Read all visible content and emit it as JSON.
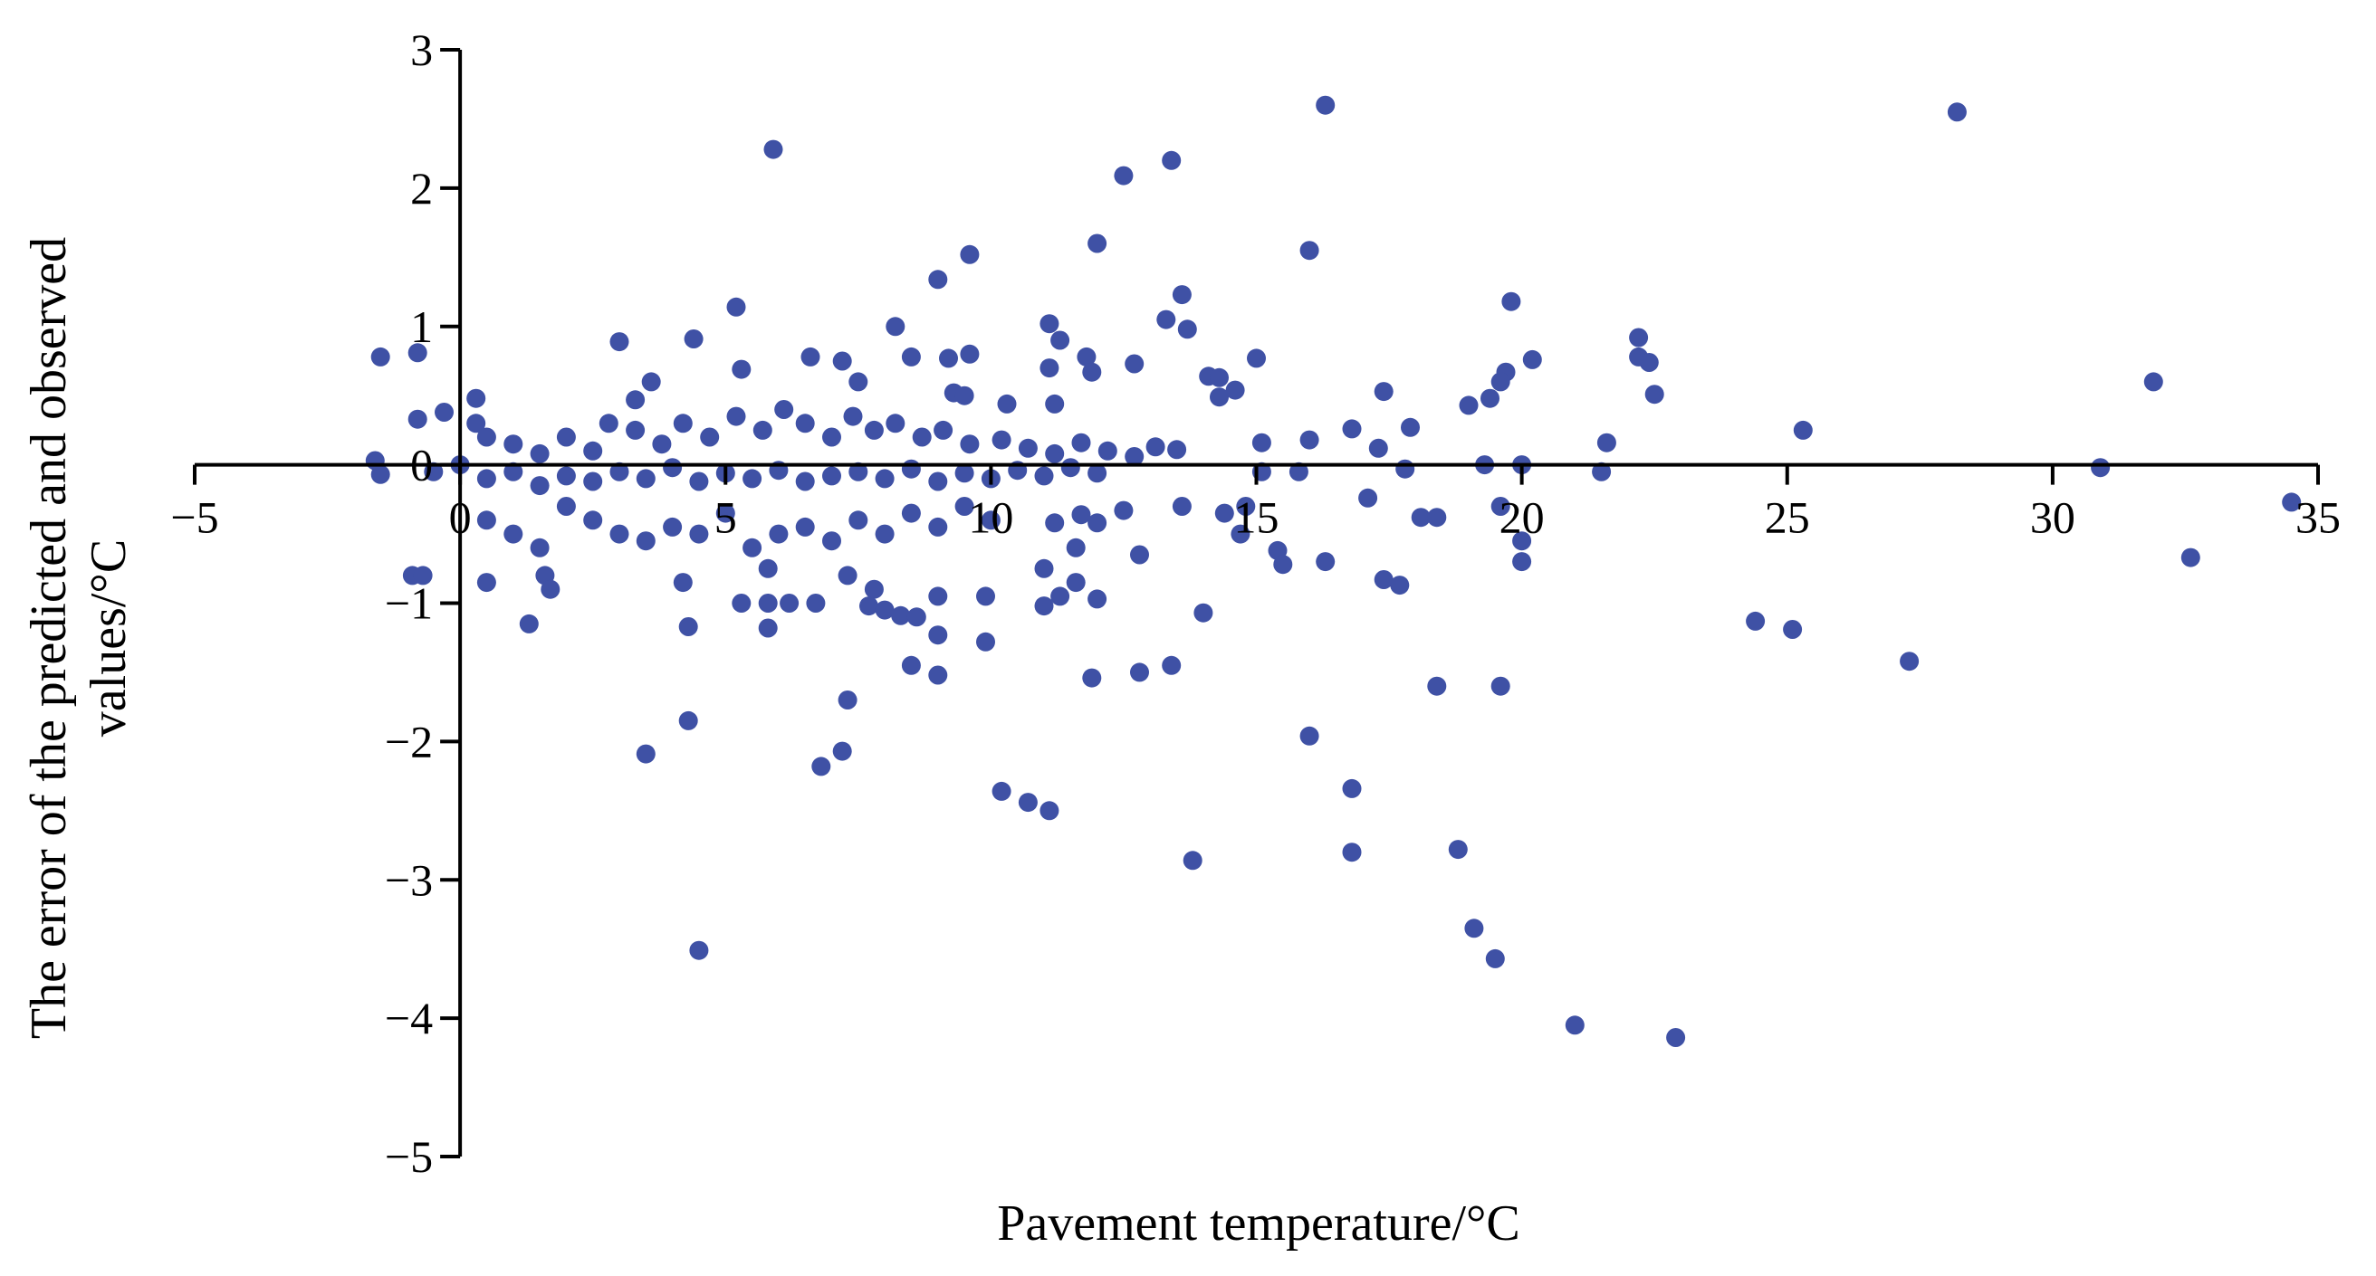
{
  "chart_data": {
    "type": "scatter",
    "title": "",
    "xlabel": "Pavement temperature/°C",
    "ylabel_lines": [
      "The error of the predicted and observed",
      "values/°C"
    ],
    "xlim": [
      -5,
      35
    ],
    "ylim": [
      -5,
      3
    ],
    "xticks": [
      -5,
      0,
      5,
      10,
      15,
      20,
      25,
      30,
      35
    ],
    "yticks": [
      -5,
      -4,
      -3,
      -2,
      -1,
      0,
      1,
      2,
      3
    ],
    "xtick_labels": [
      "−5",
      "0",
      "5",
      "10",
      "15",
      "20",
      "25",
      "30",
      "35"
    ],
    "ytick_labels": [
      "−5",
      "−4",
      "−3",
      "−2",
      "−1",
      "0",
      "1",
      "2",
      "3"
    ],
    "grid": false,
    "legend": "none",
    "marker_color": "#3f51a5",
    "series": [
      {
        "points": [
          [
            16.3,
            2.6
          ],
          [
            28.2,
            2.55
          ],
          [
            5.9,
            2.28
          ],
          [
            13.4,
            2.2
          ],
          [
            12.5,
            2.09
          ],
          [
            12.0,
            1.6
          ],
          [
            16.0,
            1.55
          ],
          [
            9.6,
            1.52
          ],
          [
            9.0,
            1.34
          ],
          [
            13.6,
            1.23
          ],
          [
            19.8,
            1.18
          ],
          [
            5.2,
            1.14
          ],
          [
            13.3,
            1.05
          ],
          [
            11.1,
            1.02
          ],
          [
            8.2,
            1.0
          ],
          [
            13.7,
            0.98
          ],
          [
            22.2,
            0.92
          ],
          [
            3.0,
            0.89
          ],
          [
            4.4,
            0.91
          ],
          [
            11.3,
            0.9
          ],
          [
            -1.5,
            0.78
          ],
          [
            -0.8,
            0.81
          ],
          [
            6.6,
            0.78
          ],
          [
            7.2,
            0.75
          ],
          [
            8.5,
            0.78
          ],
          [
            9.2,
            0.77
          ],
          [
            9.6,
            0.8
          ],
          [
            11.8,
            0.78
          ],
          [
            15.0,
            0.77
          ],
          [
            22.2,
            0.78
          ],
          [
            22.4,
            0.74
          ],
          [
            20.2,
            0.76
          ],
          [
            12.7,
            0.73
          ],
          [
            11.1,
            0.7
          ],
          [
            5.3,
            0.69
          ],
          [
            11.9,
            0.67
          ],
          [
            14.1,
            0.64
          ],
          [
            14.3,
            0.63
          ],
          [
            19.7,
            0.67
          ],
          [
            19.6,
            0.6
          ],
          [
            31.9,
            0.6
          ],
          [
            3.6,
            0.6
          ],
          [
            7.5,
            0.6
          ],
          [
            14.6,
            0.54
          ],
          [
            17.4,
            0.53
          ],
          [
            22.5,
            0.51
          ],
          [
            19.4,
            0.48
          ],
          [
            9.3,
            0.52
          ],
          [
            9.5,
            0.5
          ],
          [
            14.3,
            0.49
          ],
          [
            0.3,
            0.48
          ],
          [
            19.0,
            0.43
          ],
          [
            3.3,
            0.47
          ],
          [
            10.3,
            0.44
          ],
          [
            11.2,
            0.44
          ],
          [
            16.8,
            0.26
          ],
          [
            25.3,
            0.25
          ],
          [
            17.9,
            0.27
          ],
          [
            16.0,
            0.18
          ],
          [
            15.1,
            0.16
          ],
          [
            21.6,
            0.16
          ],
          [
            17.3,
            0.12
          ],
          [
            13.1,
            0.13
          ],
          [
            13.5,
            0.11
          ],
          [
            -0.3,
            0.38
          ],
          [
            0.3,
            0.3
          ],
          [
            -0.8,
            0.33
          ],
          [
            0.5,
            0.2
          ],
          [
            1.0,
            0.15
          ],
          [
            1.5,
            0.08
          ],
          [
            2.0,
            0.2
          ],
          [
            2.5,
            0.1
          ],
          [
            2.8,
            0.3
          ],
          [
            3.3,
            0.25
          ],
          [
            3.8,
            0.15
          ],
          [
            4.2,
            0.3
          ],
          [
            4.7,
            0.2
          ],
          [
            5.2,
            0.35
          ],
          [
            5.7,
            0.25
          ],
          [
            6.1,
            0.4
          ],
          [
            6.5,
            0.3
          ],
          [
            7.0,
            0.2
          ],
          [
            7.4,
            0.35
          ],
          [
            7.8,
            0.25
          ],
          [
            8.2,
            0.3
          ],
          [
            8.7,
            0.2
          ],
          [
            9.1,
            0.25
          ],
          [
            9.6,
            0.15
          ],
          [
            10.2,
            0.18
          ],
          [
            10.7,
            0.12
          ],
          [
            11.2,
            0.08
          ],
          [
            11.7,
            0.16
          ],
          [
            12.2,
            0.1
          ],
          [
            12.7,
            0.06
          ],
          [
            19.3,
            0.0
          ],
          [
            20.0,
            0.0
          ],
          [
            30.9,
            -0.02
          ],
          [
            17.8,
            -0.03
          ],
          [
            21.5,
            -0.05
          ],
          [
            15.1,
            -0.05
          ],
          [
            15.8,
            -0.05
          ],
          [
            -1.5,
            -0.07
          ],
          [
            -1.6,
            0.03
          ],
          [
            -0.5,
            -0.05
          ],
          [
            0.0,
            0.0
          ],
          [
            0.5,
            -0.1
          ],
          [
            1.0,
            -0.05
          ],
          [
            1.5,
            -0.15
          ],
          [
            2.0,
            -0.08
          ],
          [
            2.5,
            -0.12
          ],
          [
            3.0,
            -0.05
          ],
          [
            3.5,
            -0.1
          ],
          [
            4.0,
            -0.02
          ],
          [
            4.5,
            -0.12
          ],
          [
            5.0,
            -0.06
          ],
          [
            5.5,
            -0.1
          ],
          [
            6.0,
            -0.04
          ],
          [
            6.5,
            -0.12
          ],
          [
            7.0,
            -0.08
          ],
          [
            7.5,
            -0.05
          ],
          [
            8.0,
            -0.1
          ],
          [
            8.5,
            -0.03
          ],
          [
            9.0,
            -0.12
          ],
          [
            9.5,
            -0.06
          ],
          [
            10.0,
            -0.1
          ],
          [
            10.5,
            -0.04
          ],
          [
            11.0,
            -0.08
          ],
          [
            11.5,
            -0.02
          ],
          [
            12.0,
            -0.06
          ],
          [
            34.5,
            -0.27
          ],
          [
            17.1,
            -0.24
          ],
          [
            19.6,
            -0.3
          ],
          [
            13.6,
            -0.3
          ],
          [
            14.8,
            -0.3
          ],
          [
            12.5,
            -0.33
          ],
          [
            14.4,
            -0.35
          ],
          [
            11.7,
            -0.36
          ],
          [
            18.1,
            -0.38
          ],
          [
            18.4,
            -0.38
          ],
          [
            12.0,
            -0.42
          ],
          [
            11.2,
            -0.42
          ],
          [
            14.7,
            -0.5
          ],
          [
            20.0,
            -0.55
          ],
          [
            11.6,
            -0.6
          ],
          [
            15.4,
            -0.62
          ],
          [
            12.8,
            -0.65
          ],
          [
            16.3,
            -0.7
          ],
          [
            20.0,
            -0.7
          ],
          [
            15.5,
            -0.72
          ],
          [
            32.6,
            -0.67
          ],
          [
            -0.9,
            -0.8
          ],
          [
            -0.7,
            -0.8
          ],
          [
            0.5,
            -0.4
          ],
          [
            1.0,
            -0.5
          ],
          [
            1.5,
            -0.6
          ],
          [
            2.0,
            -0.3
          ],
          [
            2.5,
            -0.4
          ],
          [
            3.0,
            -0.5
          ],
          [
            3.5,
            -0.55
          ],
          [
            4.0,
            -0.45
          ],
          [
            4.5,
            -0.5
          ],
          [
            5.0,
            -0.35
          ],
          [
            5.5,
            -0.6
          ],
          [
            6.0,
            -0.5
          ],
          [
            6.5,
            -0.45
          ],
          [
            7.0,
            -0.55
          ],
          [
            7.5,
            -0.4
          ],
          [
            8.0,
            -0.5
          ],
          [
            8.5,
            -0.35
          ],
          [
            9.0,
            -0.45
          ],
          [
            9.5,
            -0.3
          ],
          [
            10.0,
            -0.4
          ],
          [
            0.5,
            -0.85
          ],
          [
            1.6,
            -0.8
          ],
          [
            1.7,
            -0.9
          ],
          [
            4.2,
            -0.85
          ],
          [
            5.8,
            -0.75
          ],
          [
            7.3,
            -0.8
          ],
          [
            7.8,
            -0.9
          ],
          [
            11.0,
            -0.75
          ],
          [
            11.6,
            -0.85
          ],
          [
            17.4,
            -0.83
          ],
          [
            17.7,
            -0.87
          ],
          [
            9.0,
            -0.95
          ],
          [
            9.9,
            -0.95
          ],
          [
            11.3,
            -0.95
          ],
          [
            12.0,
            -0.97
          ],
          [
            5.3,
            -1.0
          ],
          [
            5.8,
            -1.0
          ],
          [
            6.2,
            -1.0
          ],
          [
            6.7,
            -1.0
          ],
          [
            7.7,
            -1.02
          ],
          [
            8.0,
            -1.05
          ],
          [
            8.3,
            -1.09
          ],
          [
            8.6,
            -1.1
          ],
          [
            11.0,
            -1.02
          ],
          [
            14.0,
            -1.07
          ],
          [
            1.3,
            -1.15
          ],
          [
            4.3,
            -1.17
          ],
          [
            5.8,
            -1.18
          ],
          [
            9.0,
            -1.23
          ],
          [
            9.9,
            -1.28
          ],
          [
            24.4,
            -1.13
          ],
          [
            25.1,
            -1.19
          ],
          [
            27.3,
            -1.42
          ],
          [
            8.5,
            -1.45
          ],
          [
            9.0,
            -1.52
          ],
          [
            11.9,
            -1.54
          ],
          [
            12.8,
            -1.5
          ],
          [
            13.4,
            -1.45
          ],
          [
            18.4,
            -1.6
          ],
          [
            19.6,
            -1.6
          ],
          [
            7.3,
            -1.7
          ],
          [
            4.3,
            -1.85
          ],
          [
            16.0,
            -1.96
          ],
          [
            3.5,
            -2.09
          ],
          [
            7.2,
            -2.07
          ],
          [
            6.8,
            -2.18
          ],
          [
            10.2,
            -2.36
          ],
          [
            10.7,
            -2.44
          ],
          [
            11.1,
            -2.5
          ],
          [
            16.8,
            -2.34
          ],
          [
            16.8,
            -2.8
          ],
          [
            13.8,
            -2.86
          ],
          [
            18.8,
            -2.78
          ],
          [
            19.1,
            -3.35
          ],
          [
            19.5,
            -3.57
          ],
          [
            4.5,
            -3.51
          ],
          [
            21.0,
            -4.05
          ],
          [
            22.9,
            -4.14
          ]
        ]
      }
    ]
  }
}
